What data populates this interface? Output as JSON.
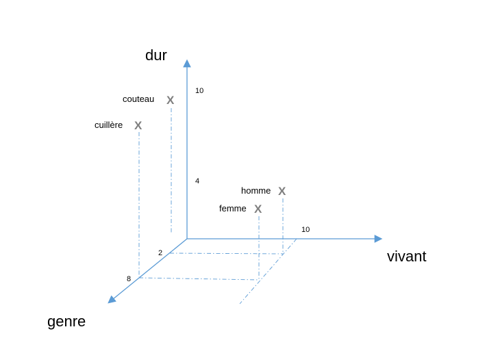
{
  "axes": {
    "vertical_label": "dur",
    "horizontal_label": "vivant",
    "depth_label": "genre",
    "ticks": {
      "vertical_10": "10",
      "vertical_4": "4",
      "horizontal_10": "10",
      "depth_2": "2",
      "depth_8": "8"
    }
  },
  "points": [
    {
      "label": "couteau",
      "marker": "X"
    },
    {
      "label": "cuillère",
      "marker": "X"
    },
    {
      "label": "homme",
      "marker": "X"
    },
    {
      "label": "femme",
      "marker": "X"
    }
  ],
  "colors": {
    "axis": "#5b9bd5",
    "marker": "#7f7f7f"
  }
}
